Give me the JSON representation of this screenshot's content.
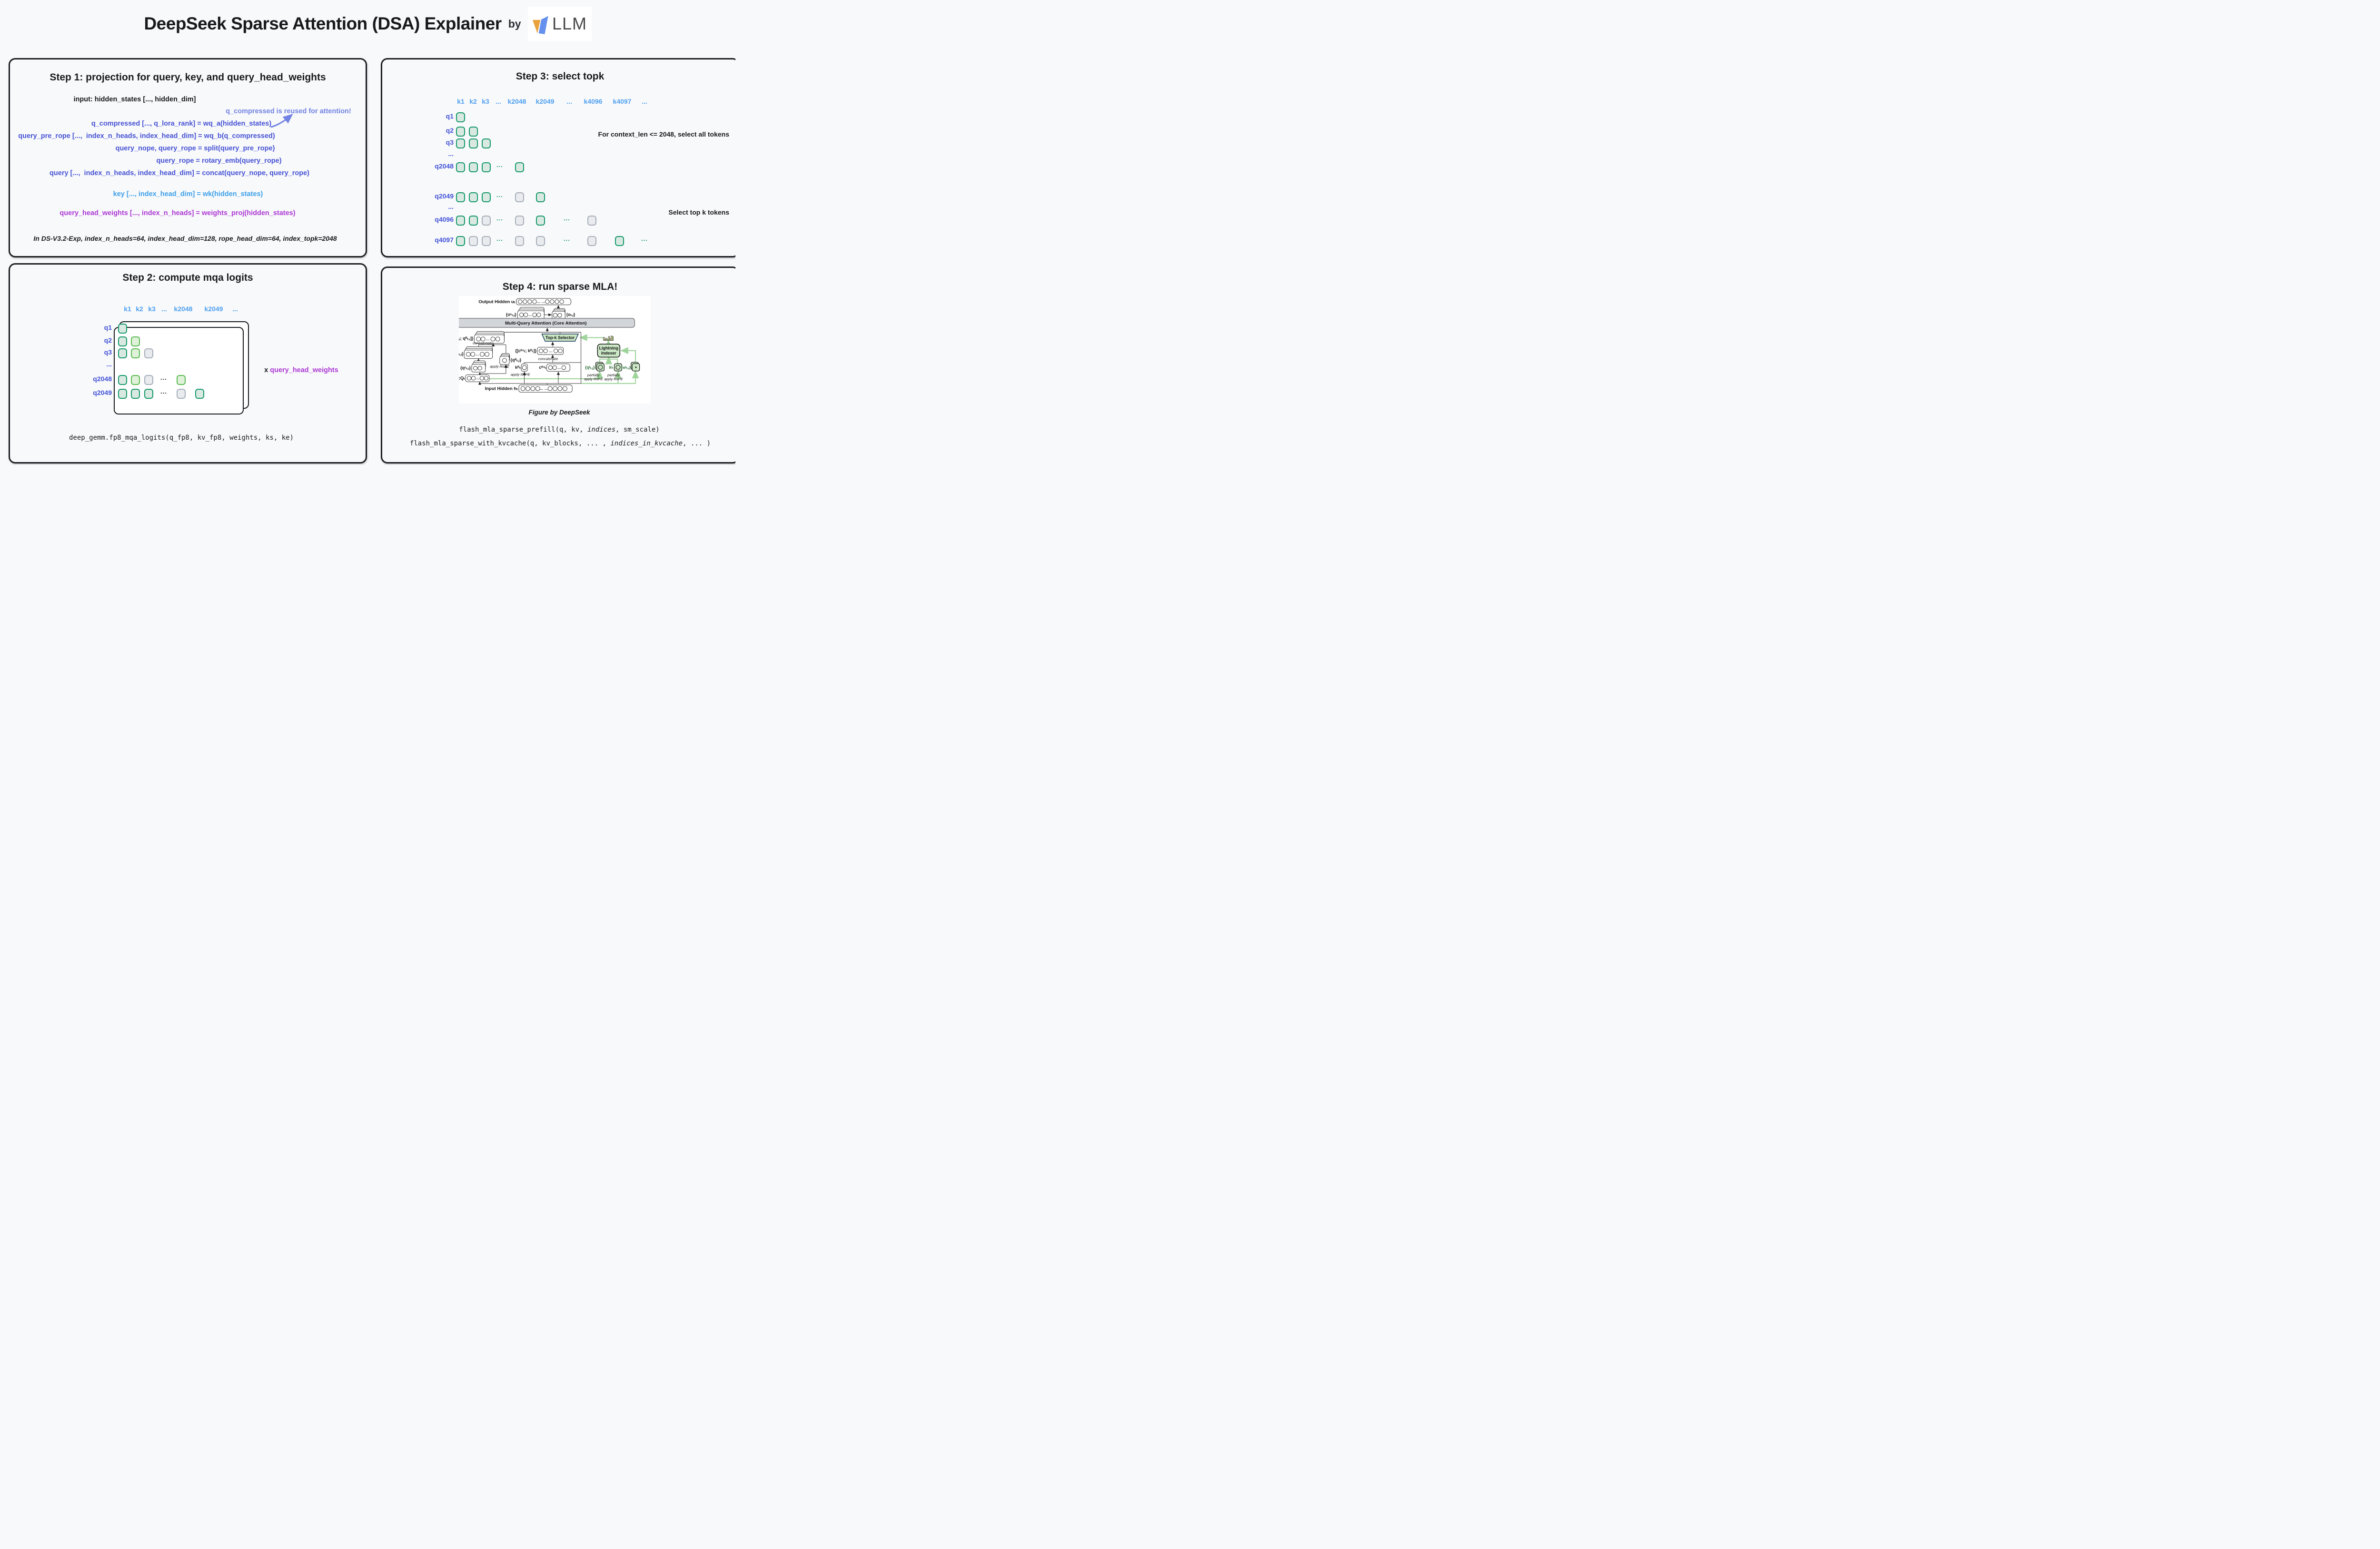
{
  "header": {
    "title_main": "DeepSeek Sparse Attention (DSA) Explainer",
    "title_by": "by",
    "logo_text": "LLM"
  },
  "colors": {
    "bg": "#f8f9fb",
    "ink": "#17191c",
    "indigo": "#4753d4",
    "peri": "#7283e3",
    "sky": "#3da0ea",
    "magenta": "#ac39d4",
    "qlabel": "#4353d8",
    "klabel": "#4fa0f0",
    "green_dark": "#13986a",
    "green_fill": "#d9e9e1",
    "green_bright": "#58ba51",
    "green_bright_fill": "#e0f1da",
    "gray_border": "#a6aeb9",
    "gray_fill": "#e9ebee",
    "black_dots": "#1a1a1a",
    "fig_green_fill": "#cbe7c6",
    "fig_green_line": "#9fd49b",
    "fig_green_text": "#2c6e36",
    "topk_border": "#1e3a5f",
    "mqa_fill": "#d2d5da",
    "bar_yellow": "#e4f2a2",
    "logo_orange": "#e9a23b",
    "logo_blue": "#6590ee",
    "logo_gray": "#4a4a4a"
  },
  "step1": {
    "title": "Step 1: projection for query, key, and query_head_weights",
    "input_line": "input: hidden_states [..., hidden_dim]",
    "note": "q_compressed is reused for attention!",
    "equations": [
      "q_compressed [..., q_lora_rank] = wq_a(hidden_states)",
      "query_pre_rope [...,  index_n_heads, index_head_dim] = wq_b(q_compressed)",
      "query_nope, query_rope = split(query_pre_rope)",
      "query_rope = rotary_emb(query_rope)",
      "query [...,  index_n_heads, index_head_dim] = concat(query_nope, query_rope)"
    ],
    "key_line": "key [..., index_head_dim] = wk(hidden_states)",
    "weights_line": "query_head_weights [..., index_n_heads] = weights_proj(hidden_states)",
    "footnote": "In DS-V3.2-Exp, index_n_heads=64, index_head_dim=128, rope_head_dim=64, index_topk=2048"
  },
  "step2": {
    "title": "Step 2: compute mqa logits",
    "k_labels": [
      "k1",
      "k2",
      "k3",
      "...",
      "k2048",
      "k2049",
      "..."
    ],
    "rows": [
      {
        "label": "q1",
        "cells": [
          {
            "c": 0,
            "t": "g"
          }
        ]
      },
      {
        "label": "q2",
        "cells": [
          {
            "c": 0,
            "t": "g"
          },
          {
            "c": 1,
            "t": "lg"
          }
        ]
      },
      {
        "label": "q3",
        "cells": [
          {
            "c": 0,
            "t": "g"
          },
          {
            "c": 1,
            "t": "lg"
          },
          {
            "c": 2,
            "t": "gy"
          }
        ]
      },
      {
        "label": "...",
        "cells": []
      },
      {
        "label": "q2048",
        "cells": [
          {
            "c": 0,
            "t": "g"
          },
          {
            "c": 1,
            "t": "lg"
          },
          {
            "c": 2,
            "t": "gy"
          },
          {
            "c": 3,
            "t": "dots"
          },
          {
            "c": 4,
            "t": "lg"
          }
        ]
      },
      {
        "label": "q2049",
        "cells": [
          {
            "c": 0,
            "t": "g"
          },
          {
            "c": 1,
            "t": "g"
          },
          {
            "c": 2,
            "t": "g"
          },
          {
            "c": 3,
            "t": "dots"
          },
          {
            "c": 4,
            "t": "gy"
          },
          {
            "c": 5,
            "t": "g"
          }
        ]
      }
    ],
    "multiply_x": "x ",
    "multiply_label": "query_head_weights",
    "code": "deep_gemm.fp8_mqa_logits(q_fp8, kv_fp8, weights, ks, ke)"
  },
  "step3": {
    "title": "Step 3: select topk",
    "k_labels": [
      "k1",
      "k2",
      "k3",
      "...",
      "k2048",
      "k2049",
      "...",
      "k4096",
      "k4097",
      "..."
    ],
    "rows": [
      {
        "label": "q1",
        "cells": [
          {
            "c": 0,
            "t": "g"
          }
        ]
      },
      {
        "label": "q2",
        "cells": [
          {
            "c": 0,
            "t": "g"
          },
          {
            "c": 1,
            "t": "g"
          }
        ]
      },
      {
        "label": "q3",
        "cells": [
          {
            "c": 0,
            "t": "g"
          },
          {
            "c": 1,
            "t": "g"
          },
          {
            "c": 2,
            "t": "g"
          }
        ]
      },
      {
        "label": "...",
        "cells": []
      },
      {
        "label": "q2048",
        "cells": [
          {
            "c": 0,
            "t": "g"
          },
          {
            "c": 1,
            "t": "g"
          },
          {
            "c": 2,
            "t": "g"
          },
          {
            "c": 3,
            "t": "dots"
          },
          {
            "c": 4,
            "t": "g"
          }
        ]
      },
      {
        "label": "q2049",
        "cells": [
          {
            "c": 0,
            "t": "g"
          },
          {
            "c": 1,
            "t": "g"
          },
          {
            "c": 2,
            "t": "g"
          },
          {
            "c": 3,
            "t": "dots"
          },
          {
            "c": 4,
            "t": "gy"
          },
          {
            "c": 5,
            "t": "g"
          }
        ]
      },
      {
        "label": "...",
        "cells": []
      },
      {
        "label": "q4096",
        "cells": [
          {
            "c": 0,
            "t": "g"
          },
          {
            "c": 1,
            "t": "g"
          },
          {
            "c": 2,
            "t": "gy"
          },
          {
            "c": 3,
            "t": "dots"
          },
          {
            "c": 4,
            "t": "gy"
          },
          {
            "c": 5,
            "t": "g"
          },
          {
            "c": 6,
            "t": "dots"
          },
          {
            "c": 7,
            "t": "gy"
          }
        ]
      },
      {
        "label": "q4097",
        "cells": [
          {
            "c": 0,
            "t": "g"
          },
          {
            "c": 1,
            "t": "gy"
          },
          {
            "c": 2,
            "t": "gy"
          },
          {
            "c": 3,
            "t": "dots"
          },
          {
            "c": 4,
            "t": "gy"
          },
          {
            "c": 5,
            "t": "gy"
          },
          {
            "c": 6,
            "t": "dots"
          },
          {
            "c": 7,
            "t": "gy"
          },
          {
            "c": 8,
            "t": "g"
          },
          {
            "c": 9,
            "t": "dots"
          }
        ]
      }
    ],
    "note_all": "For context_len <= 2048, select all tokens",
    "note_topk": "Select top k tokens"
  },
  "step4": {
    "title": "Step 4: run sparse MLA!",
    "caption": "Figure by DeepSeek",
    "code_prefill": {
      "pre": "flash_mla_sparse_prefill(q, kv, ",
      "em": "indices",
      "post": ", sm_scale)"
    },
    "code_kvcache": {
      "pre": "flash_mla_sparse_with_kvcache(q, kv_blocks, ... , ",
      "em": "indices_in_kvcache",
      "post": ", ... )"
    },
    "figure": {
      "output_hidden": "Output Hidden uₜ",
      "o_c": "{oᶜₜ,ᵢ}",
      "o": "{oₜ,ᵢ}",
      "mqa": "Multi-Query Attention (Core Attention)",
      "qa_qr": "{[qᴬₜ,ᵢ; qᴿₜ,ᵢ]}",
      "concat1": "concatenate",
      "topk": "Top-k Selector",
      "qa": "{qᴬₜ,ᵢ}",
      "qr": "{qᴿₜ,ᵢ}",
      "apply_rope": "apply RoPE",
      "qc": "{qᶜₜ,ᵢ}",
      "ckv_kr": "{[cᴷᵛₜ; kᴿₜ]}",
      "concat2": "concatenate",
      "kr": "kᴿₜ",
      "ckv": "cᴷᵛₜ",
      "cq": "cQₜ",
      "lightning1": "Lightning",
      "lightning2": "Indexer",
      "qi": "{qᴵₜ,ⱼ}",
      "ki": "kᴵₜ",
      "wi": "{wᴵₜ,ⱼ}",
      "partially": "partially",
      "input_hidden": "Input Hidden hₜ",
      "dots": "…",
      "dots2": "…  …"
    }
  }
}
